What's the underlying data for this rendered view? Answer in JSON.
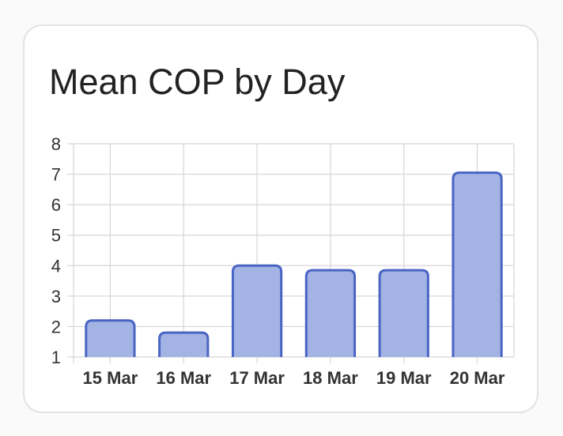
{
  "card": {
    "title": "Mean COP by Day"
  },
  "chart_data": {
    "type": "bar",
    "categories": [
      "15 Mar",
      "16 Mar",
      "17 Mar",
      "18 Mar",
      "19 Mar",
      "20 Mar"
    ],
    "values": [
      2.2,
      1.8,
      4.0,
      3.85,
      3.85,
      7.05
    ],
    "title": "Mean COP by Day",
    "xlabel": "",
    "ylabel": "",
    "ylim": [
      1,
      8
    ],
    "yticks": [
      1,
      2,
      3,
      4,
      5,
      6,
      7,
      8
    ],
    "grid": true,
    "legend": "none",
    "colors": {
      "bar_fill": "#a3b3e4",
      "bar_stroke": "#4a64c4",
      "grid": "#d6d6d6"
    }
  }
}
